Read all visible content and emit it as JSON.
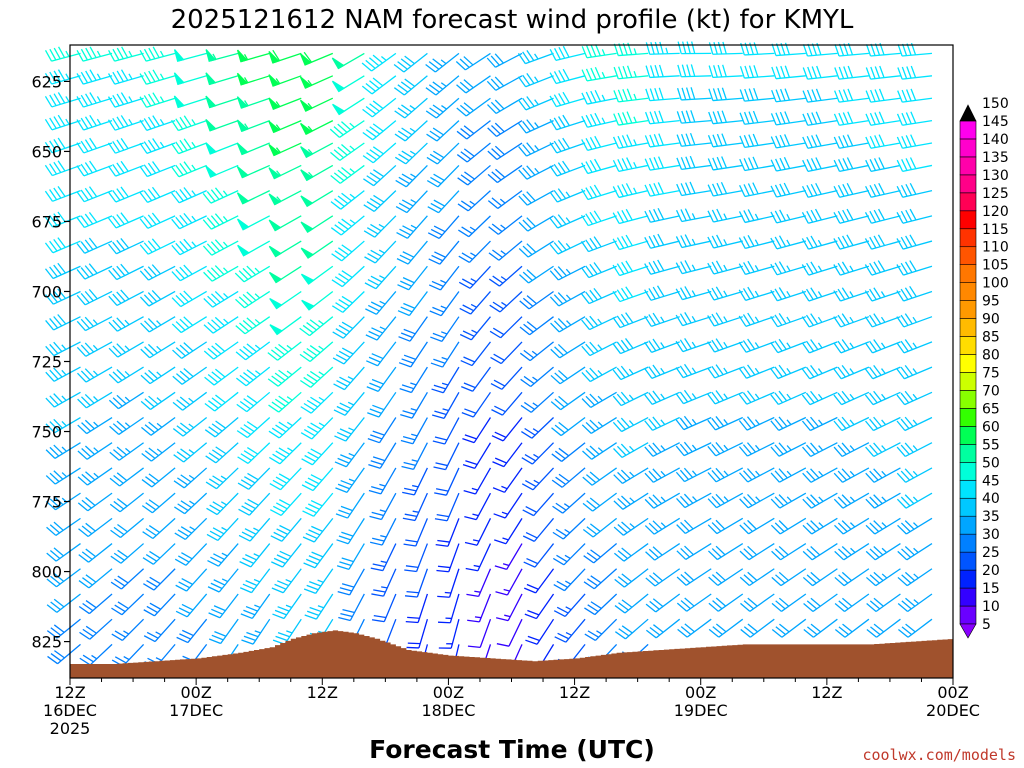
{
  "chart_data": {
    "type": "wind-barb-profile",
    "title": "2025121612 NAM forecast wind profile (kt) for KMYL",
    "xlabel": "Forecast Time (UTC)",
    "ylabel": "",
    "credit": "coolwx.com/models",
    "x_range_hours": [
      0,
      84
    ],
    "y_range_hpa": [
      612,
      838
    ],
    "y_ticks": [
      {
        "label": "625",
        "value": 625
      },
      {
        "label": "650",
        "value": 650
      },
      {
        "label": "675",
        "value": 675
      },
      {
        "label": "700",
        "value": 700
      },
      {
        "label": "725",
        "value": 725
      },
      {
        "label": "750",
        "value": 750
      },
      {
        "label": "775",
        "value": 775
      },
      {
        "label": "800",
        "value": 800
      },
      {
        "label": "825",
        "value": 825
      }
    ],
    "x_ticks": [
      {
        "hour": 0,
        "lines": [
          "12Z",
          "16DEC",
          "2025"
        ]
      },
      {
        "hour": 12,
        "lines": [
          "00Z",
          "17DEC"
        ]
      },
      {
        "hour": 24,
        "lines": [
          "12Z"
        ]
      },
      {
        "hour": 36,
        "lines": [
          "00Z",
          "18DEC"
        ]
      },
      {
        "hour": 48,
        "lines": [
          "12Z"
        ]
      },
      {
        "hour": 60,
        "lines": [
          "00Z",
          "19DEC"
        ]
      },
      {
        "hour": 72,
        "lines": [
          "12Z"
        ]
      },
      {
        "hour": 84,
        "lines": [
          "00Z",
          "20DEC"
        ]
      }
    ],
    "colorbar": {
      "unit": "kt",
      "levels": [
        5,
        10,
        15,
        20,
        25,
        30,
        35,
        40,
        45,
        50,
        55,
        60,
        65,
        70,
        75,
        80,
        85,
        90,
        95,
        100,
        105,
        110,
        115,
        120,
        125,
        130,
        135,
        140,
        145,
        150
      ],
      "colors": [
        "#8800ff",
        "#6a00ff",
        "#3300ff",
        "#0022ff",
        "#0055ff",
        "#0080ff",
        "#00a6ff",
        "#00c8ff",
        "#00e4ff",
        "#00ffd9",
        "#00ffa0",
        "#00ff55",
        "#33ff00",
        "#88ff00",
        "#ccff00",
        "#ffff00",
        "#ffdd00",
        "#ffbb00",
        "#ff9900",
        "#ff8800",
        "#ff7700",
        "#ff5500",
        "#ff3300",
        "#ff0000",
        "#ff0055",
        "#ff0088",
        "#ff00aa",
        "#ff00cc",
        "#ff00ee",
        "#000000"
      ]
    },
    "terrain_hpa": [
      {
        "hour": 0,
        "p": 833
      },
      {
        "hour": 4,
        "p": 833
      },
      {
        "hour": 8,
        "p": 832
      },
      {
        "hour": 12,
        "p": 831
      },
      {
        "hour": 16,
        "p": 829
      },
      {
        "hour": 19,
        "p": 827
      },
      {
        "hour": 21,
        "p": 824
      },
      {
        "hour": 23,
        "p": 822
      },
      {
        "hour": 25,
        "p": 821
      },
      {
        "hour": 27,
        "p": 822
      },
      {
        "hour": 29,
        "p": 824
      },
      {
        "hour": 32,
        "p": 828
      },
      {
        "hour": 36,
        "p": 830
      },
      {
        "hour": 40,
        "p": 831
      },
      {
        "hour": 44,
        "p": 832
      },
      {
        "hour": 48,
        "p": 831
      },
      {
        "hour": 52,
        "p": 829
      },
      {
        "hour": 56,
        "p": 828
      },
      {
        "hour": 60,
        "p": 827
      },
      {
        "hour": 64,
        "p": 826
      },
      {
        "hour": 68,
        "p": 826
      },
      {
        "hour": 72,
        "p": 826
      },
      {
        "hour": 76,
        "p": 826
      },
      {
        "hour": 80,
        "p": 825
      },
      {
        "hour": 84,
        "p": 824
      }
    ],
    "profile_levels_hpa": [
      615,
      623,
      631,
      639,
      647,
      655,
      664,
      673,
      682,
      691,
      700,
      709,
      718,
      727,
      736,
      745,
      754,
      763,
      772,
      781,
      790,
      799,
      808,
      817,
      826,
      835
    ],
    "wind_keyframes": [
      {
        "hour": 0,
        "speed_top": 45,
        "speed_bottom": 28,
        "dir_top": 255,
        "dir_bottom": 230
      },
      {
        "hour": 9,
        "speed_top": 45,
        "speed_bottom": 25,
        "dir_top": 255,
        "dir_bottom": 220
      },
      {
        "hour": 18,
        "speed_top": 55,
        "speed_bottom": 30,
        "dir_top": 255,
        "dir_bottom": 210
      },
      {
        "hour": 24,
        "speed_top": 60,
        "speed_bottom": 35,
        "dir_top": 250,
        "dir_bottom": 210
      },
      {
        "hour": 30,
        "speed_top": 45,
        "speed_bottom": 20,
        "dir_top": 235,
        "dir_bottom": 200
      },
      {
        "hour": 36,
        "speed_top": 35,
        "speed_bottom": 15,
        "dir_top": 230,
        "dir_bottom": 190
      },
      {
        "hour": 42,
        "speed_top": 30,
        "speed_bottom": 8,
        "dir_top": 240,
        "dir_bottom": 200
      },
      {
        "hour": 48,
        "speed_top": 40,
        "speed_bottom": 20,
        "dir_top": 255,
        "dir_bottom": 215
      },
      {
        "hour": 54,
        "speed_top": 48,
        "speed_bottom": 28,
        "dir_top": 265,
        "dir_bottom": 225
      },
      {
        "hour": 60,
        "speed_top": 40,
        "speed_bottom": 30,
        "dir_top": 270,
        "dir_bottom": 230
      },
      {
        "hour": 72,
        "speed_top": 40,
        "speed_bottom": 30,
        "dir_top": 265,
        "dir_bottom": 230
      },
      {
        "hour": 84,
        "speed_top": 42,
        "speed_bottom": 32,
        "dir_top": 265,
        "dir_bottom": 230
      }
    ],
    "barb_time_step_hours": 3,
    "terrain_color": "#a0522d"
  }
}
